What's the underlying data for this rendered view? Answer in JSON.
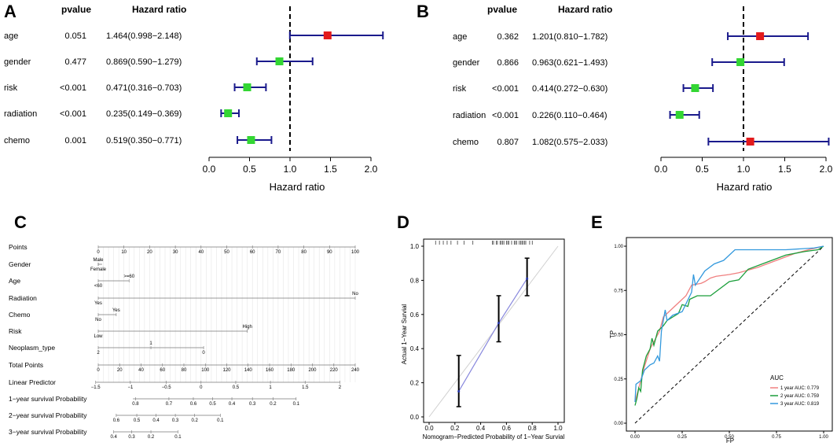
{
  "colors": {
    "ci": "#1a1a8c",
    "risk_up": "#e31a1c",
    "risk_down": "#33d633",
    "auc1": "#f08080",
    "auc2": "#1a9e3a",
    "auc3": "#3399dd",
    "cal": "#8888dd"
  },
  "chart_data": [
    {
      "id": "A",
      "type": "forest",
      "panel_label": "A",
      "col_pvalue": "pvalue",
      "col_hr": "Hazard ratio",
      "xlabel": "Hazard ratio",
      "xlim": [
        0,
        2
      ],
      "xticks": [
        "0.0",
        "0.5",
        "1.0",
        "1.5",
        "2.0"
      ],
      "reference": 1.0,
      "rows": [
        {
          "label": "age",
          "pvalue": "0.051",
          "hr_text": "1.464(0.998−2.148)",
          "hr": 1.464,
          "lo": 0.998,
          "hi": 2.148,
          "color": "risk_up"
        },
        {
          "label": "gender",
          "pvalue": "0.477",
          "hr_text": "0.869(0.590−1.279)",
          "hr": 0.869,
          "lo": 0.59,
          "hi": 1.279,
          "color": "risk_down"
        },
        {
          "label": "risk",
          "pvalue": "<0.001",
          "hr_text": "0.471(0.316−0.703)",
          "hr": 0.471,
          "lo": 0.316,
          "hi": 0.703,
          "color": "risk_down"
        },
        {
          "label": "radiation",
          "pvalue": "<0.001",
          "hr_text": "0.235(0.149−0.369)",
          "hr": 0.235,
          "lo": 0.149,
          "hi": 0.369,
          "color": "risk_down"
        },
        {
          "label": "chemo",
          "pvalue": "0.001",
          "hr_text": "0.519(0.350−0.771)",
          "hr": 0.519,
          "lo": 0.35,
          "hi": 0.771,
          "color": "risk_down"
        }
      ]
    },
    {
      "id": "B",
      "type": "forest",
      "panel_label": "B",
      "col_pvalue": "pvalue",
      "col_hr": "Hazard ratio",
      "xlabel": "Hazard ratio",
      "xlim": [
        0,
        2
      ],
      "xticks": [
        "0.0",
        "0.5",
        "1.0",
        "1.5",
        "2.0"
      ],
      "reference": 1.0,
      "rows": [
        {
          "label": "age",
          "pvalue": "0.362",
          "hr_text": "1.201(0.810−1.782)",
          "hr": 1.201,
          "lo": 0.81,
          "hi": 1.782,
          "color": "risk_up"
        },
        {
          "label": "gender",
          "pvalue": "0.866",
          "hr_text": "0.963(0.621−1.493)",
          "hr": 0.963,
          "lo": 0.621,
          "hi": 1.493,
          "color": "risk_down"
        },
        {
          "label": "risk",
          "pvalue": "<0.001",
          "hr_text": "0.414(0.272−0.630)",
          "hr": 0.414,
          "lo": 0.272,
          "hi": 0.63,
          "color": "risk_down"
        },
        {
          "label": "radiation",
          "pvalue": "<0.001",
          "hr_text": "0.226(0.110−0.464)",
          "hr": 0.226,
          "lo": 0.11,
          "hi": 0.464,
          "color": "risk_down"
        },
        {
          "label": "chemo",
          "pvalue": "0.807",
          "hr_text": "1.082(0.575−2.033)",
          "hr": 1.082,
          "lo": 0.575,
          "hi": 2.033,
          "color": "risk_up"
        }
      ]
    },
    {
      "id": "C",
      "type": "nomogram",
      "panel_label": "C",
      "rows": [
        {
          "label": "Points",
          "min": 0,
          "max": 100,
          "labels": [
            {
              "v": 0,
              "t": "0"
            },
            {
              "v": 10,
              "t": "10"
            },
            {
              "v": 20,
              "t": "20"
            },
            {
              "v": 30,
              "t": "30"
            },
            {
              "v": 40,
              "t": "40"
            },
            {
              "v": 50,
              "t": "50"
            },
            {
              "v": 60,
              "t": "60"
            },
            {
              "v": 70,
              "t": "70"
            },
            {
              "v": 80,
              "t": "80"
            },
            {
              "v": 90,
              "t": "90"
            },
            {
              "v": 100,
              "t": "100"
            }
          ]
        },
        {
          "label": "Gender",
          "min": 0,
          "max": 1.5,
          "labels": [
            {
              "v": 0,
              "t": "Male",
              "pos": "above"
            },
            {
              "v": 0,
              "t": "Female",
              "pos": "below"
            }
          ]
        },
        {
          "label": "Age",
          "min": 0,
          "max": 12,
          "labels": [
            {
              "v": 12,
              "t": ">=60",
              "pos": "above"
            },
            {
              "v": 0,
              "t": "<60",
              "pos": "below"
            }
          ]
        },
        {
          "label": "Radiation",
          "min": 0,
          "max": 100,
          "labels": [
            {
              "v": 100,
              "t": "No",
              "pos": "above"
            },
            {
              "v": 0,
              "t": "Yes",
              "pos": "below"
            }
          ]
        },
        {
          "label": "Chemo",
          "min": 0,
          "max": 7,
          "labels": [
            {
              "v": 7,
              "t": "Yes",
              "pos": "above"
            },
            {
              "v": 0,
              "t": "No",
              "pos": "below"
            }
          ]
        },
        {
          "label": "Risk",
          "min": 0,
          "max": 58,
          "labels": [
            {
              "v": 58,
              "t": "High",
              "pos": "above"
            },
            {
              "v": 0,
              "t": "Low",
              "pos": "below"
            }
          ]
        },
        {
          "label": "Neoplasm_type",
          "min": 0,
          "max": 41,
          "labels": [
            {
              "v": 20.5,
              "t": "1",
              "pos": "above"
            },
            {
              "v": 0,
              "t": "2",
              "pos": "below"
            },
            {
              "v": 41,
              "t": "0",
              "pos": "below"
            }
          ]
        },
        {
          "label": "Total Points",
          "min": 0,
          "max": 100,
          "labels": [
            {
              "v": 0,
              "t": "0"
            },
            {
              "v": 8.33,
              "t": "20"
            },
            {
              "v": 16.67,
              "t": "40"
            },
            {
              "v": 25,
              "t": "60"
            },
            {
              "v": 33.33,
              "t": "80"
            },
            {
              "v": 41.67,
              "t": "100"
            },
            {
              "v": 50,
              "t": "120"
            },
            {
              "v": 58.33,
              "t": "140"
            },
            {
              "v": 66.67,
              "t": "160"
            },
            {
              "v": 75,
              "t": "180"
            },
            {
              "v": 83.33,
              "t": "200"
            },
            {
              "v": 91.67,
              "t": "220"
            },
            {
              "v": 100,
              "t": "240"
            }
          ]
        },
        {
          "label": "Linear Predictor",
          "min": -1,
          "max": 94,
          "labels": [
            {
              "v": -1,
              "t": "−1.5"
            },
            {
              "v": 12.5,
              "t": "−1"
            },
            {
              "v": 26.5,
              "t": "−0.5"
            },
            {
              "v": 40,
              "t": "0"
            },
            {
              "v": 53.5,
              "t": "0.5"
            },
            {
              "v": 67,
              "t": "1"
            },
            {
              "v": 80.5,
              "t": "1.5"
            },
            {
              "v": 94,
              "t": "2"
            }
          ]
        },
        {
          "label": "1−year survival Probability",
          "min": 13.5,
          "max": 77,
          "labels": [
            {
              "v": 14.5,
              "t": "0.8"
            },
            {
              "v": 27.5,
              "t": "0.7"
            },
            {
              "v": 37,
              "t": "0.6"
            },
            {
              "v": 44.5,
              "t": "0.5"
            },
            {
              "v": 52,
              "t": "0.4"
            },
            {
              "v": 60,
              "t": "0.3"
            },
            {
              "v": 68,
              "t": "0.2"
            },
            {
              "v": 77,
              "t": "0.1"
            }
          ]
        },
        {
          "label": "2−year survival Probability",
          "min": 7,
          "max": 47.5,
          "labels": [
            {
              "v": 7,
              "t": "0.6"
            },
            {
              "v": 15,
              "t": "0.5"
            },
            {
              "v": 22.5,
              "t": "0.4"
            },
            {
              "v": 30,
              "t": "0.3"
            },
            {
              "v": 37.5,
              "t": "0.2"
            },
            {
              "v": 47.5,
              "t": "0.1"
            }
          ]
        },
        {
          "label": "3−year survival Probability",
          "min": 6,
          "max": 31,
          "labels": [
            {
              "v": 6,
              "t": "0.4"
            },
            {
              "v": 13,
              "t": "0.3"
            },
            {
              "v": 20.5,
              "t": "0.2"
            },
            {
              "v": 31,
              "t": "0.1"
            }
          ]
        }
      ]
    },
    {
      "id": "D",
      "type": "calibration",
      "panel_label": "D",
      "xlabel": "Nomogram−Predicted Probability of 1−Year Survial",
      "ylabel": "Actual 1−Year Survial",
      "xlim": [
        0,
        1
      ],
      "ylim": [
        0,
        1
      ],
      "xticks": [
        "0.0",
        "0.2",
        "0.4",
        "0.6",
        "0.8",
        "1.0"
      ],
      "yticks": [
        "0.0",
        "0.2",
        "0.4",
        "0.6",
        "0.8",
        "1.0"
      ],
      "points": [
        {
          "x": 0.23,
          "y": 0.15,
          "lo": 0.06,
          "hi": 0.36
        },
        {
          "x": 0.54,
          "y": 0.55,
          "lo": 0.44,
          "hi": 0.71
        },
        {
          "x": 0.76,
          "y": 0.81,
          "lo": 0.71,
          "hi": 0.93
        }
      ],
      "rug": [
        0.05,
        0.08,
        0.11,
        0.14,
        0.17,
        0.22,
        0.27,
        0.34,
        0.49,
        0.5,
        0.52,
        0.53,
        0.55,
        0.56,
        0.57,
        0.58,
        0.6,
        0.61,
        0.62,
        0.64,
        0.66,
        0.67,
        0.68,
        0.7,
        0.71,
        0.72,
        0.73,
        0.74,
        0.75,
        0.78,
        0.8
      ]
    },
    {
      "id": "E",
      "type": "line",
      "panel_label": "E",
      "xlabel": "FP",
      "ylabel": "TP",
      "xlim": [
        0,
        1
      ],
      "ylim": [
        0,
        1
      ],
      "xticks": [
        "0.00",
        "0.25",
        "0.50",
        "0.75",
        "1.00"
      ],
      "yticks": [
        "0.00",
        "0.25",
        "0.50",
        "0.75",
        "1.00"
      ],
      "legend_title": "AUC",
      "series": [
        {
          "name": "1 year AUC: 0.779",
          "color": "auc1",
          "points": [
            [
              0,
              0.12
            ],
            [
              0.02,
              0.2
            ],
            [
              0.05,
              0.32
            ],
            [
              0.08,
              0.42
            ],
            [
              0.11,
              0.48
            ],
            [
              0.13,
              0.52
            ],
            [
              0.15,
              0.6
            ],
            [
              0.18,
              0.63
            ],
            [
              0.2,
              0.65
            ],
            [
              0.23,
              0.68
            ],
            [
              0.27,
              0.72
            ],
            [
              0.3,
              0.78
            ],
            [
              0.35,
              0.79
            ],
            [
              0.37,
              0.8
            ],
            [
              0.4,
              0.82
            ],
            [
              0.43,
              0.83
            ],
            [
              0.5,
              0.84
            ],
            [
              0.55,
              0.85
            ],
            [
              0.65,
              0.88
            ],
            [
              0.75,
              0.92
            ],
            [
              0.85,
              0.96
            ],
            [
              0.92,
              0.98
            ],
            [
              0.96,
              0.99
            ],
            [
              1,
              1
            ]
          ]
        },
        {
          "name": "2 year AUC: 0.759",
          "color": "auc2",
          "points": [
            [
              0,
              0.1
            ],
            [
              0.01,
              0.14
            ],
            [
              0.02,
              0.2
            ],
            [
              0.03,
              0.18
            ],
            [
              0.04,
              0.3
            ],
            [
              0.06,
              0.38
            ],
            [
              0.08,
              0.42
            ],
            [
              0.09,
              0.48
            ],
            [
              0.1,
              0.44
            ],
            [
              0.12,
              0.52
            ],
            [
              0.15,
              0.55
            ],
            [
              0.17,
              0.58
            ],
            [
              0.2,
              0.6
            ],
            [
              0.23,
              0.62
            ],
            [
              0.25,
              0.67
            ],
            [
              0.28,
              0.66
            ],
            [
              0.29,
              0.7
            ],
            [
              0.33,
              0.72
            ],
            [
              0.4,
              0.72
            ],
            [
              0.5,
              0.8
            ],
            [
              0.55,
              0.81
            ],
            [
              0.6,
              0.87
            ],
            [
              0.7,
              0.91
            ],
            [
              0.8,
              0.95
            ],
            [
              0.9,
              0.97
            ],
            [
              0.97,
              0.98
            ],
            [
              1,
              1
            ]
          ]
        },
        {
          "name": "3 year AUC: 0.819",
          "color": "auc3",
          "points": [
            [
              0,
              0.12
            ],
            [
              0.005,
              0.22
            ],
            [
              0.03,
              0.24
            ],
            [
              0.05,
              0.3
            ],
            [
              0.08,
              0.33
            ],
            [
              0.1,
              0.34
            ],
            [
              0.12,
              0.38
            ],
            [
              0.13,
              0.35
            ],
            [
              0.14,
              0.52
            ],
            [
              0.15,
              0.58
            ],
            [
              0.16,
              0.64
            ],
            [
              0.17,
              0.58
            ],
            [
              0.2,
              0.61
            ],
            [
              0.25,
              0.63
            ],
            [
              0.3,
              0.74
            ],
            [
              0.31,
              0.84
            ],
            [
              0.32,
              0.78
            ],
            [
              0.37,
              0.86
            ],
            [
              0.42,
              0.9
            ],
            [
              0.47,
              0.92
            ],
            [
              0.53,
              0.98
            ],
            [
              0.6,
              0.98
            ],
            [
              0.7,
              0.98
            ],
            [
              0.8,
              0.98
            ],
            [
              0.95,
              0.99
            ],
            [
              1,
              1
            ]
          ]
        }
      ]
    }
  ]
}
